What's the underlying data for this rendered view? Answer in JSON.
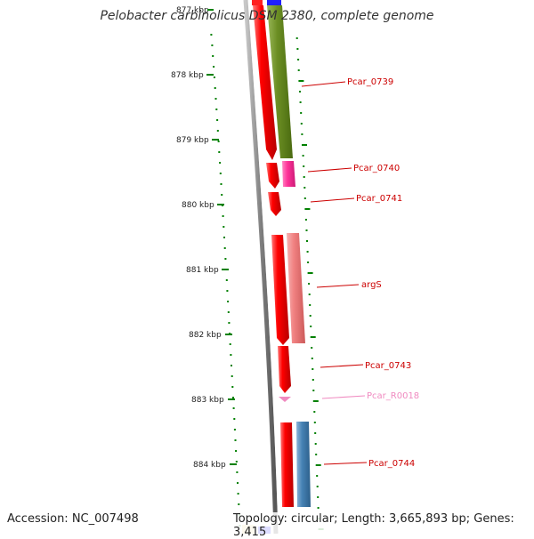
{
  "title": "Pelobacter carbinolicus DSM 2380, complete genome",
  "accession_text": "Accession: NC_007498",
  "stats_text": "Topology: circular; Length: 3,665,893 bp; Genes: 3,415",
  "ruler": {
    "unit": "kbp",
    "labels": [
      "877 kbp",
      "878 kbp",
      "879 kbp",
      "880 kbp",
      "881 kbp",
      "882 kbp",
      "883 kbp",
      "884 kbp"
    ]
  },
  "genes": [
    {
      "name": "Pcar_0739",
      "color": "#cc0000"
    },
    {
      "name": "Pcar_0740",
      "color": "#cc0000"
    },
    {
      "name": "Pcar_0741",
      "color": "#cc0000"
    },
    {
      "name": "argS",
      "color": "#cc0000"
    },
    {
      "name": "Pcar_0743",
      "color": "#cc0000"
    },
    {
      "name": "Pcar_R0018",
      "color": "#f08ac0"
    },
    {
      "name": "Pcar_0744",
      "color": "#cc0000"
    }
  ],
  "colors": {
    "cds": "#ff0000",
    "cog_olive": "#6b8e23",
    "cog_magenta": "#ff3399",
    "cog_salmon": "#f08080",
    "cog_steelblue": "#4682b4",
    "rna": "#f08ac0",
    "ruler_ticks": "#008000",
    "backbone": "#808080"
  }
}
